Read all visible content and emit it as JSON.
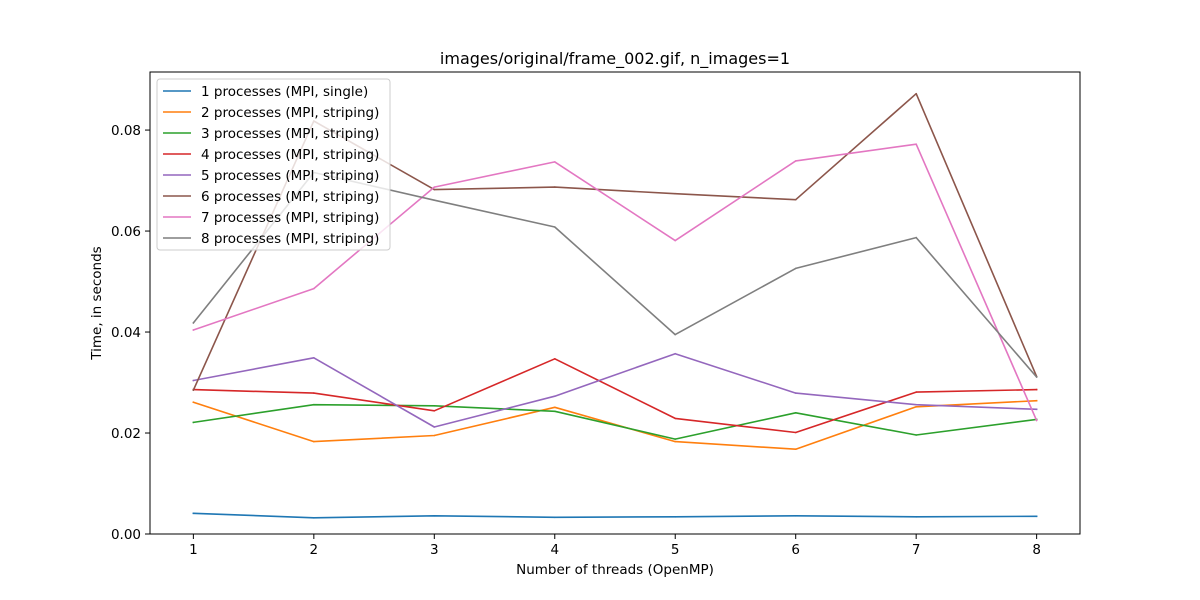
{
  "chart_data": {
    "type": "line",
    "title": "images/original/frame_002.gif, n_images=1",
    "xlabel": "Number of threads (OpenMP)",
    "ylabel": "Time, in seconds",
    "x": [
      1,
      2,
      3,
      4,
      5,
      6,
      7,
      8
    ],
    "xlim": [
      0.64,
      8.36
    ],
    "ylim": [
      0.0,
      0.0915
    ],
    "xticks": [
      1,
      2,
      3,
      4,
      5,
      6,
      7,
      8
    ],
    "xtick_labels": [
      "1",
      "2",
      "3",
      "4",
      "5",
      "6",
      "7",
      "8"
    ],
    "yticks": [
      0.0,
      0.02,
      0.04,
      0.06,
      0.08
    ],
    "ytick_labels": [
      "0.00",
      "0.02",
      "0.04",
      "0.06",
      "0.08"
    ],
    "grid": false,
    "legend_position": "top-left",
    "series": [
      {
        "name": "1 processes (MPI, single)",
        "color": "#1f77b4",
        "values": [
          0.0041,
          0.0032,
          0.0036,
          0.0033,
          0.0034,
          0.0036,
          0.0034,
          0.0035
        ]
      },
      {
        "name": "2 processes (MPI, striping)",
        "color": "#ff7f0e",
        "values": [
          0.0261,
          0.0183,
          0.0195,
          0.0251,
          0.0183,
          0.0168,
          0.0252,
          0.0264
        ]
      },
      {
        "name": "3 processes (MPI, striping)",
        "color": "#2ca02c",
        "values": [
          0.0221,
          0.0256,
          0.0254,
          0.0243,
          0.0188,
          0.024,
          0.0196,
          0.0227
        ]
      },
      {
        "name": "4 processes (MPI, striping)",
        "color": "#d62728",
        "values": [
          0.0286,
          0.0279,
          0.0244,
          0.0347,
          0.0229,
          0.0201,
          0.0281,
          0.0286
        ]
      },
      {
        "name": "5 processes (MPI, striping)",
        "color": "#9467bd",
        "values": [
          0.0304,
          0.0349,
          0.0212,
          0.0273,
          0.0357,
          0.0279,
          0.0256,
          0.0247
        ]
      },
      {
        "name": "6 processes (MPI, striping)",
        "color": "#8c564b",
        "values": [
          0.0285,
          0.0818,
          0.0682,
          0.0687,
          0.0674,
          0.0662,
          0.0872,
          0.0312
        ]
      },
      {
        "name": "7 processes (MPI, striping)",
        "color": "#e377c2",
        "values": [
          0.0404,
          0.0486,
          0.0687,
          0.0737,
          0.0581,
          0.0739,
          0.0772,
          0.0225
        ]
      },
      {
        "name": "8 processes (MPI, striping)",
        "color": "#7f7f7f",
        "values": [
          0.0418,
          0.0716,
          0.0661,
          0.0608,
          0.0395,
          0.0526,
          0.0587,
          0.0311
        ]
      }
    ]
  }
}
